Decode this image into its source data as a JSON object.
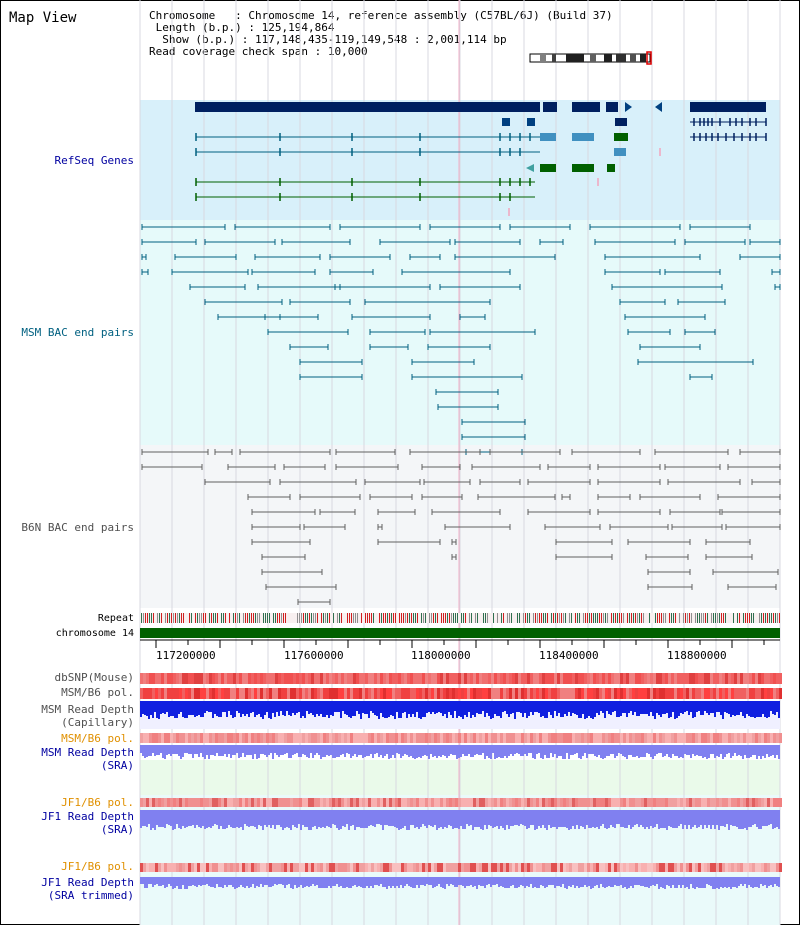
{
  "title": "Map View",
  "info": {
    "chromosome_label": "Chromosome",
    "chromosome_value": "Chromosome 14, reference assembly (C57BL/6J) (Build 37)",
    "length_label": "Length (b.p.)",
    "length_value": "125,194,864",
    "show_label": "Show (b.p.)",
    "show_value": "117,148,435-119,149,548 : 2,001,114 bp",
    "coverage_label": "Read coverage check span",
    "coverage_value": "10,000"
  },
  "tracks": {
    "refseq": "RefSeq Genes",
    "msm_bac": "MSM BAC end pairs",
    "b6n_bac": "B6N BAC end pairs",
    "repeat": "Repeat",
    "chromosome": "chromosome 14",
    "dbsnp": "dbSNP(Mouse)",
    "msm_b6_pol_1": "MSM/B6 pol.",
    "msm_read_depth_cap_1": "MSM Read Depth",
    "msm_read_depth_cap_2": "(Capillary)",
    "msm_b6_pol_2": "MSM/B6 pol.",
    "msm_read_depth_sra_1": "MSM Read Depth",
    "msm_read_depth_sra_2": "(SRA)",
    "jf1_b6_pol_1": "JF1/B6 pol.",
    "jf1_read_depth_sra_1": "JF1 Read Depth",
    "jf1_read_depth_sra_2": "(SRA)",
    "jf1_b6_pol_2": "JF1/B6 pol.",
    "jf1_read_depth_trim_1": "JF1 Read Depth",
    "jf1_read_depth_trim_2": "(SRA trimmed)"
  },
  "axis": {
    "ticks": [
      "117200000",
      "117600000",
      "118000000",
      "118400000",
      "118800000"
    ]
  },
  "colors": {
    "refseq_bg": "#d8f0fa",
    "msm_bg": "#e6fafa",
    "b6n_bg": "#f4f6f8",
    "gene_navy": "#002060",
    "gene_teal": "#006080",
    "gene_green": "#006000",
    "chromosome_bar": "#006000",
    "depth_blue": "#1020e0",
    "depth_light": "#8080f0"
  }
}
